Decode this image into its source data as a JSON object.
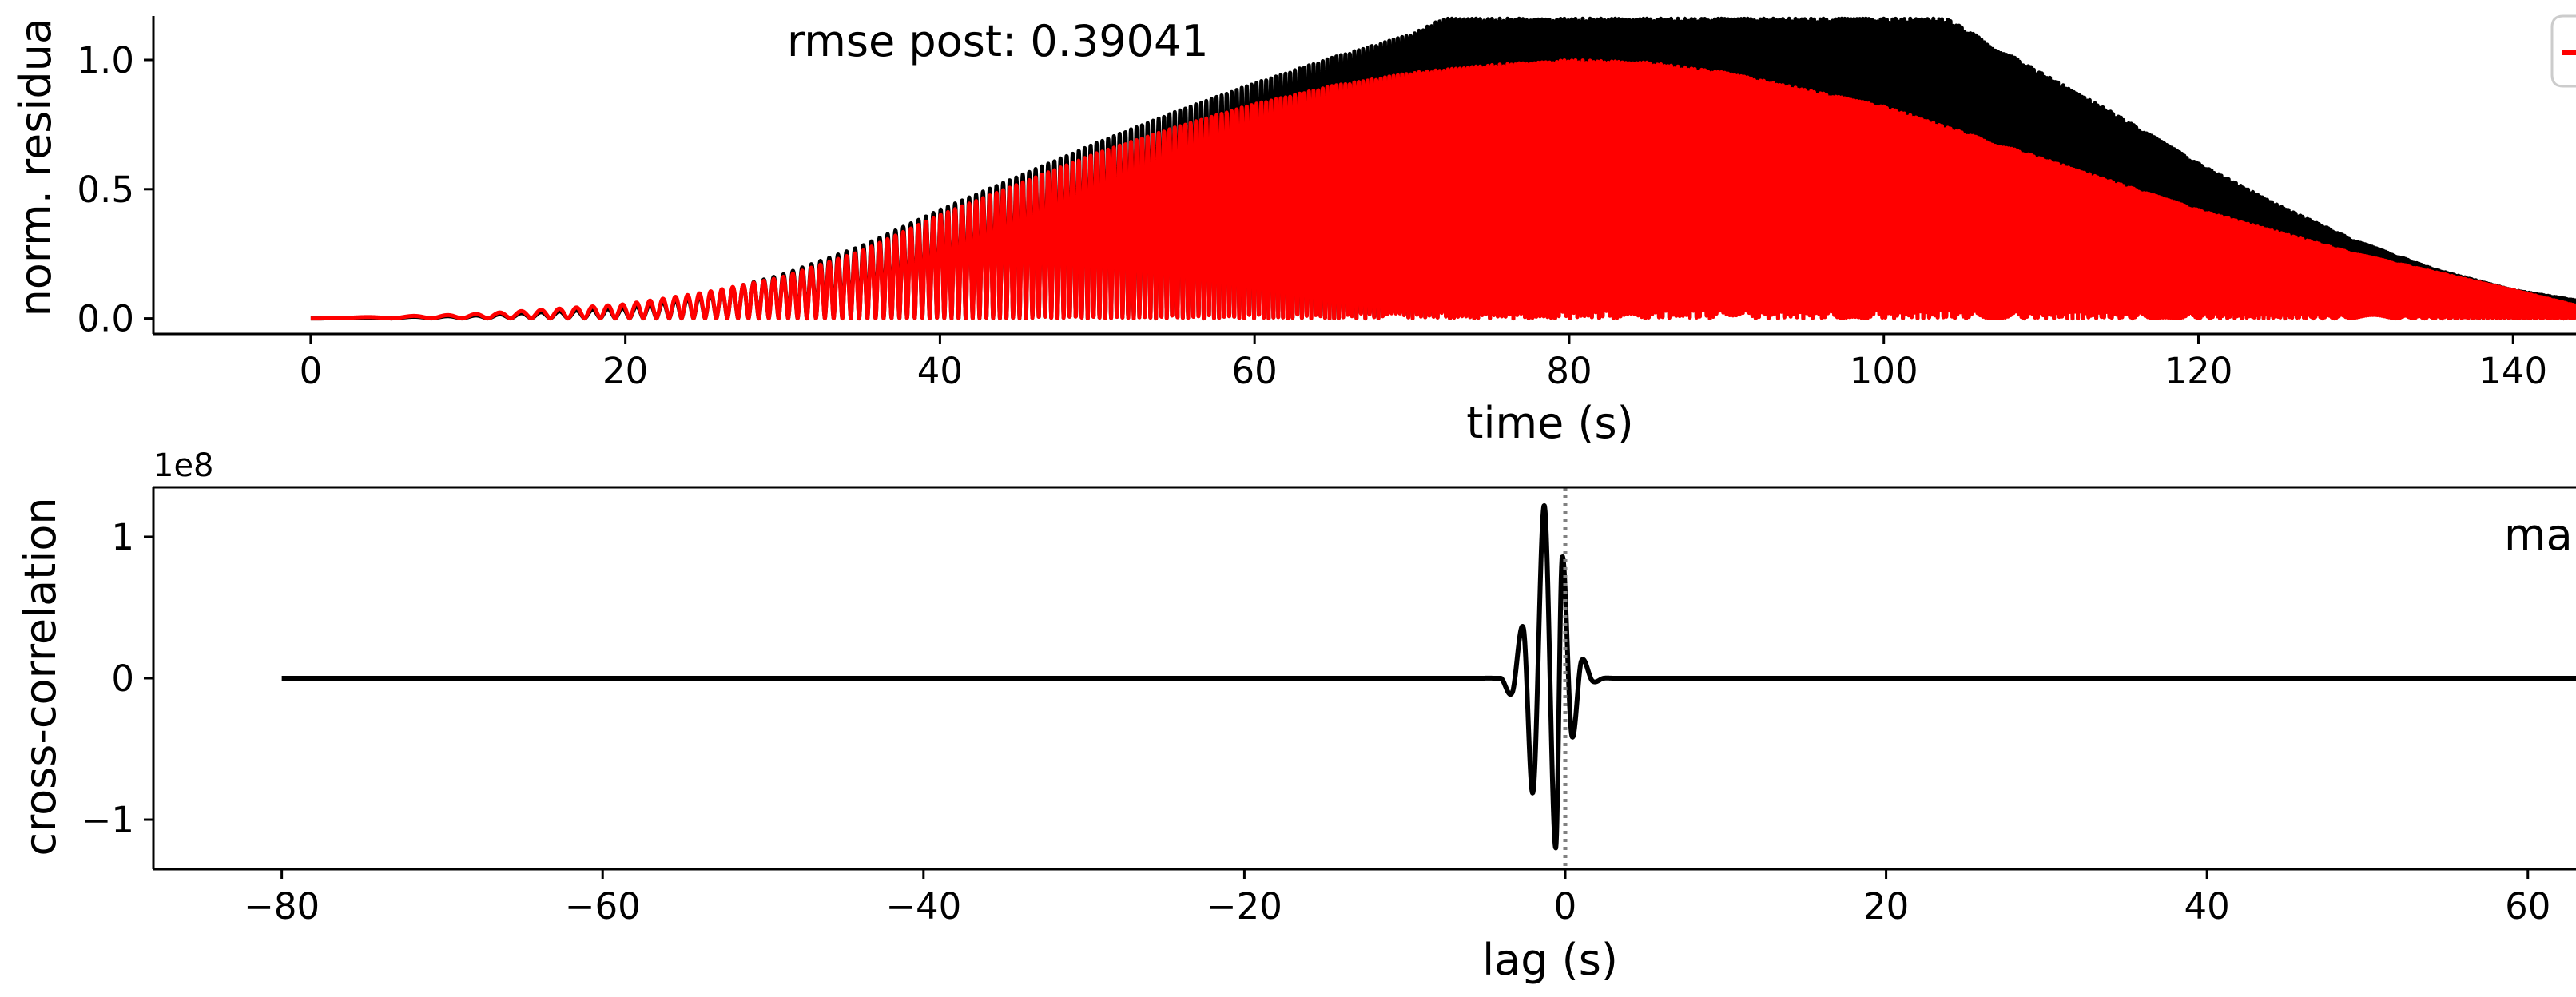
{
  "chart_data": [
    {
      "type": "line",
      "title": "",
      "xlabel": "time (s)",
      "ylabel": "norm. residua",
      "annotation": "rmse post: 0.39041",
      "xlim": [
        -10,
        144
      ],
      "ylim": [
        -0.06,
        1.17
      ],
      "x_ticks": [
        0,
        20,
        40,
        60,
        80,
        100,
        120,
        140
      ],
      "x_tick_labels": [
        "0",
        "20",
        "40",
        "60",
        "80",
        "100",
        "120",
        "140"
      ],
      "y_ticks": [
        0.0,
        0.5,
        1.0
      ],
      "y_tick_labels": [
        "0.0",
        "0.5",
        "1.0"
      ],
      "grid": false,
      "legend": "top-right (clipped)",
      "series": [
        {
          "color": "#000000",
          "kind": "oscillating rectified envelope",
          "x": [
            0,
            10,
            20,
            25,
            30,
            35,
            40,
            45,
            50,
            55,
            60,
            65,
            70,
            72,
            80,
            90,
            100,
            104,
            110,
            115,
            120,
            125,
            130,
            135,
            140,
            144
          ],
          "y": [
            0.0,
            0.01,
            0.04,
            0.09,
            0.17,
            0.28,
            0.42,
            0.55,
            0.68,
            0.8,
            0.91,
            1.01,
            1.1,
            1.16,
            1.16,
            1.16,
            1.16,
            1.16,
            0.95,
            0.78,
            0.6,
            0.44,
            0.3,
            0.19,
            0.11,
            0.07
          ]
        },
        {
          "color": "#ff0000",
          "kind": "oscillating rectified envelope",
          "x": [
            0,
            10,
            15,
            20,
            25,
            30,
            35,
            40,
            45,
            50,
            55,
            60,
            65,
            70,
            75,
            80,
            85,
            90,
            100,
            110,
            120,
            130,
            140,
            144
          ],
          "y": [
            0.0,
            0.015,
            0.035,
            0.055,
            0.1,
            0.16,
            0.26,
            0.4,
            0.52,
            0.64,
            0.74,
            0.83,
            0.9,
            0.95,
            0.98,
            1.0,
            0.99,
            0.95,
            0.82,
            0.62,
            0.42,
            0.25,
            0.11,
            0.05
          ]
        }
      ]
    },
    {
      "type": "line",
      "title": "",
      "xlabel": "lag (s)",
      "ylabel": "cross-correlation",
      "y_offset_label": "1e8",
      "annotation": "ma",
      "xlim": [
        -88,
        63
      ],
      "ylim": [
        -1.35,
        1.35
      ],
      "x_ticks": [
        -80,
        -60,
        -40,
        -20,
        0,
        20,
        40,
        60
      ],
      "x_tick_labels": [
        "−80",
        "−60",
        "−40",
        "−20",
        "0",
        "20",
        "40",
        "60"
      ],
      "y_ticks": [
        -1,
        0,
        1
      ],
      "y_tick_labels": [
        "−1",
        "0",
        "1"
      ],
      "grid": false,
      "vline": {
        "x": 0,
        "style": "dotted",
        "color": "#808080"
      },
      "series": [
        {
          "color": "#000000",
          "kind": "wavelet centered at zero lag",
          "x": [
            -80,
            -4,
            -3.3,
            -2.6,
            -2.0,
            -1.3,
            -0.6,
            -0.2,
            0.4,
            1.0,
            1.7,
            2.4,
            3.0,
            3.7,
            4.5,
            63
          ],
          "y": [
            0,
            0,
            -0.1,
            0.35,
            -0.8,
            1.22,
            -1.2,
            0.85,
            -0.4,
            0.12,
            -0.02,
            0,
            0,
            0,
            0,
            0
          ]
        }
      ]
    }
  ]
}
